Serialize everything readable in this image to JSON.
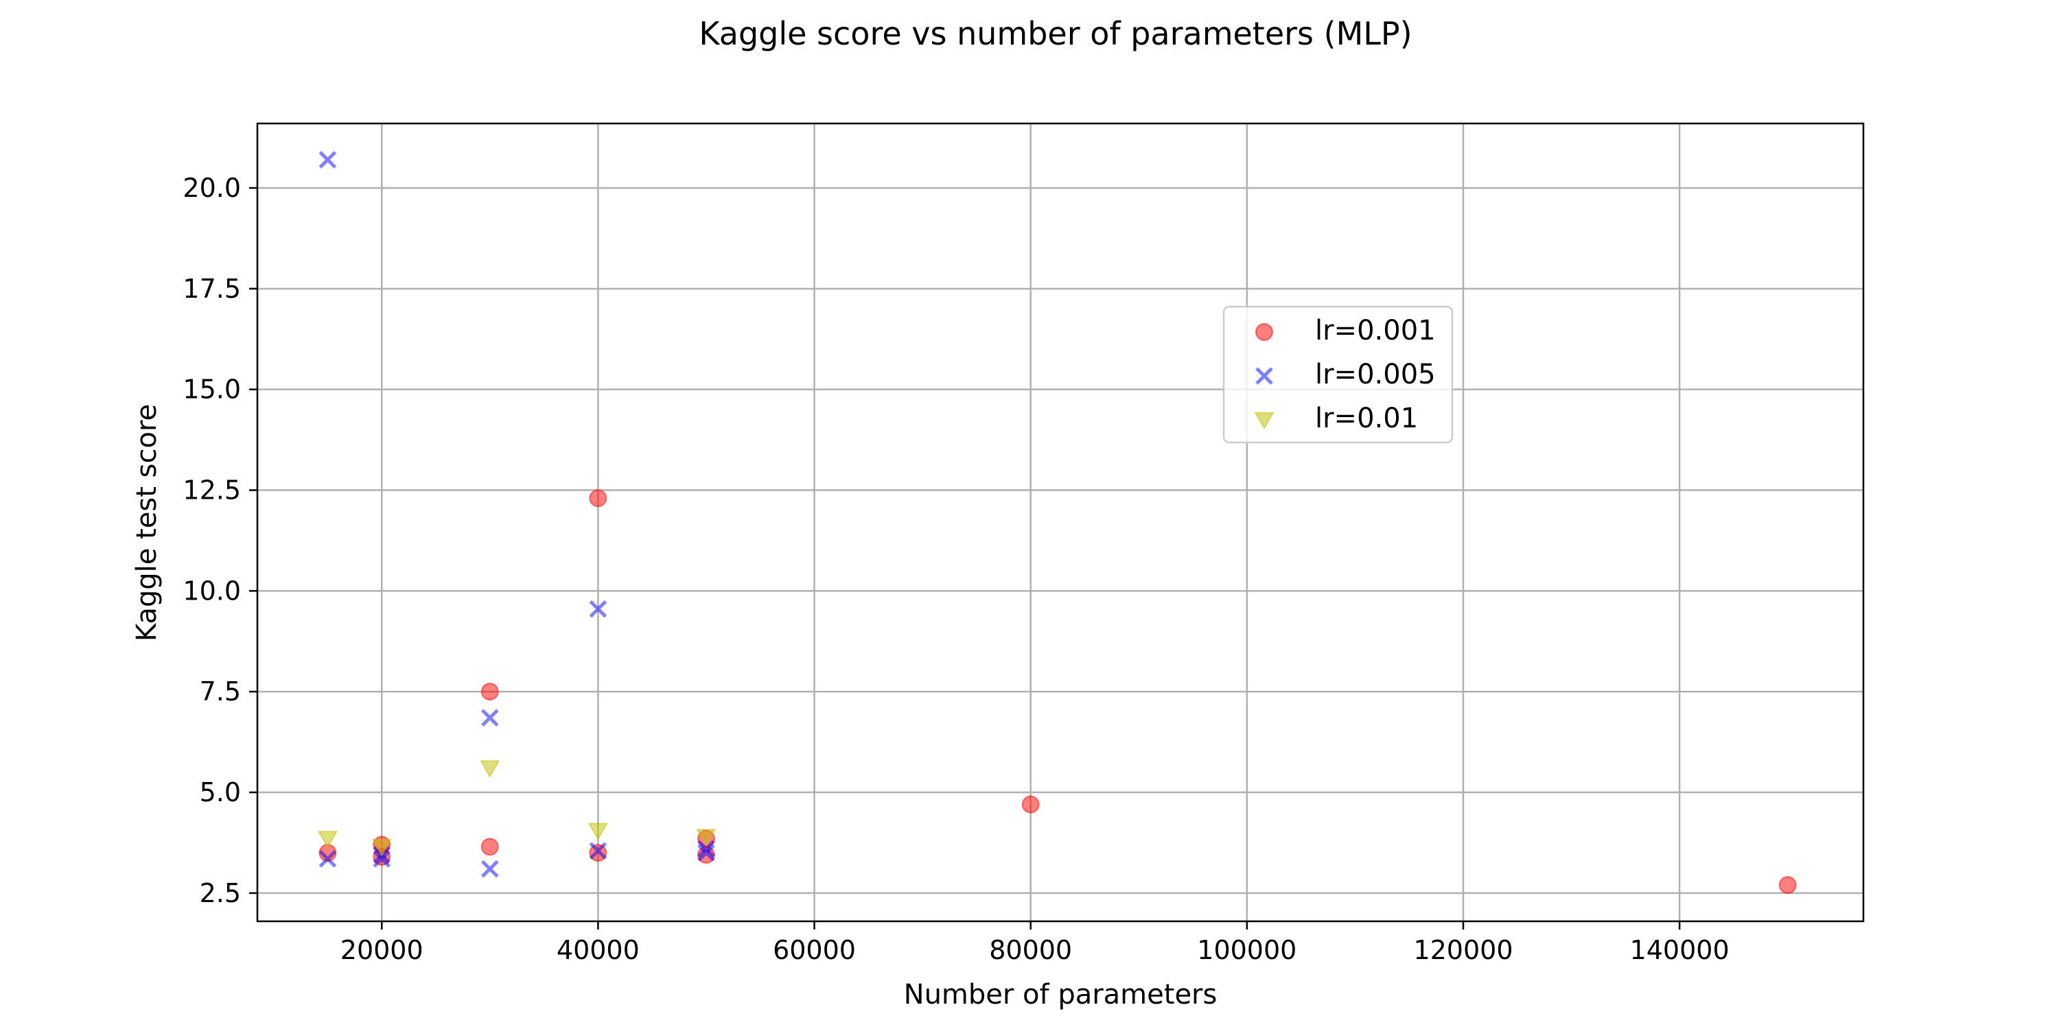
{
  "chart_data": {
    "type": "scatter",
    "title": "Kaggle score vs number of parameters (MLP)",
    "xlabel": "Number of parameters",
    "ylabel": "Kaggle test score",
    "xlim": [
      8500,
      157000
    ],
    "ylim": [
      1.8,
      21.6
    ],
    "xticks": [
      20000,
      40000,
      60000,
      80000,
      100000,
      120000,
      140000
    ],
    "yticks": [
      2.5,
      5.0,
      7.5,
      10.0,
      12.5,
      15.0,
      17.5,
      20.0
    ],
    "ytick_labels": [
      "2.5",
      "5.0",
      "7.5",
      "10.0",
      "12.5",
      "15.0",
      "17.5",
      "20.0"
    ],
    "grid": true,
    "legend_position": "center-right",
    "series": [
      {
        "name": "lr=0.001",
        "marker": "circle",
        "color": "#ff0000",
        "x": [
          15000,
          20000,
          20000,
          30000,
          30000,
          40000,
          40000,
          50000,
          50000,
          80000,
          150000
        ],
        "y": [
          3.5,
          3.7,
          3.4,
          3.65,
          7.5,
          12.3,
          3.5,
          3.85,
          3.45,
          4.7,
          2.7
        ]
      },
      {
        "name": "lr=0.005",
        "marker": "x",
        "color": "#0000ff",
        "x": [
          15000,
          15000,
          20000,
          20000,
          30000,
          30000,
          40000,
          40000,
          50000,
          50000
        ],
        "y": [
          20.7,
          3.35,
          3.35,
          3.45,
          6.85,
          3.1,
          9.55,
          3.55,
          3.6,
          3.5
        ]
      },
      {
        "name": "lr=0.01",
        "marker": "triangle-down",
        "color": "#bfbf00",
        "x": [
          15000,
          20000,
          30000,
          40000,
          50000
        ],
        "y": [
          3.85,
          3.65,
          5.6,
          4.05,
          3.9
        ]
      }
    ]
  }
}
